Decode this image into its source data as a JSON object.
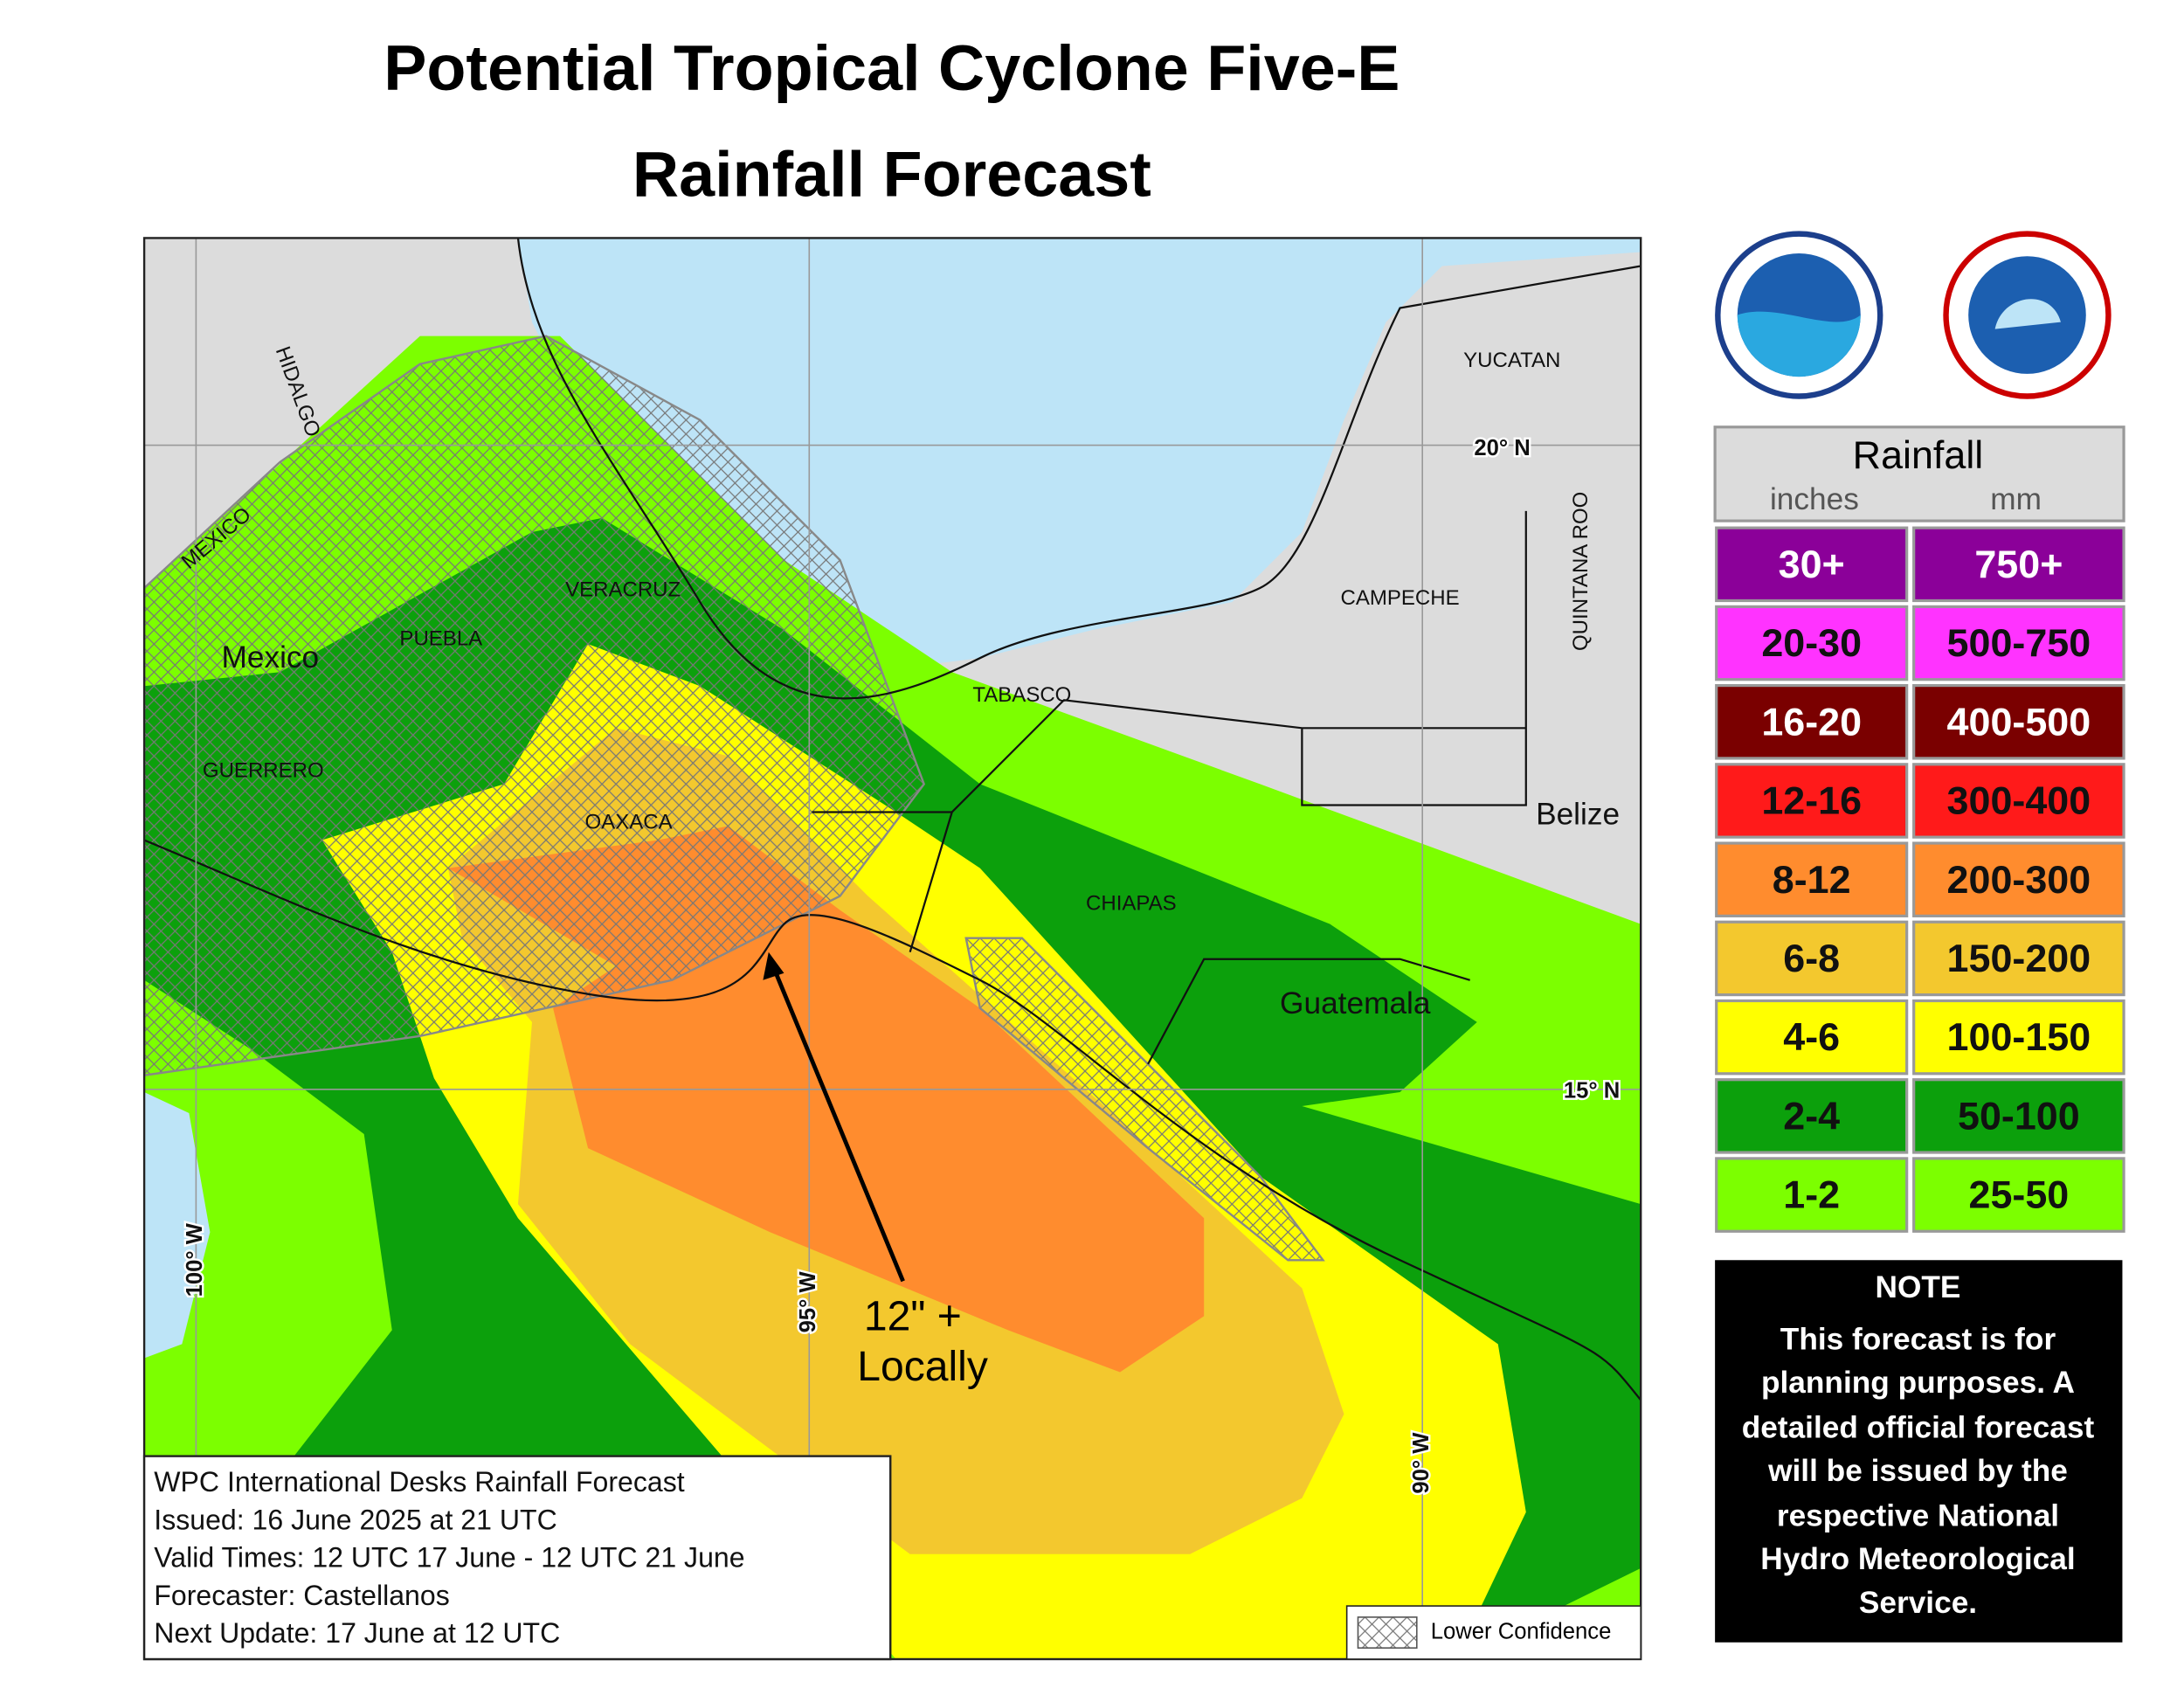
{
  "title": [
    "Potential Tropical Cyclone Five-E",
    "Rainfall Forecast"
  ],
  "map": {
    "labels": {
      "yucatan": "YUCATAN",
      "campeche": "CAMPECHE",
      "quintana_roo": "QUINTANA ROO",
      "belize": "Belize",
      "tabasco": "TABASCO",
      "chiapas": "CHIAPAS",
      "guatemala": "Guatemala",
      "veracruz": "VERACRUZ",
      "puebla": "PUEBLA",
      "mexico_country": "Mexico",
      "guerrero": "GUERRERO",
      "oaxaca": "OAXACA",
      "hidalgo": "HIDALGO",
      "mexico_state": "MEXICO"
    },
    "grid_labels": {
      "lat20": "20° N",
      "lat15": "15° N",
      "lon100": "100° W",
      "lon95": "95° W",
      "lon90": "90° W"
    },
    "annotation": [
      "12\" +",
      "Locally"
    ]
  },
  "legend": {
    "title": "Rainfall",
    "units": [
      "inches",
      "mm"
    ],
    "rows": [
      {
        "inches": "30+",
        "mm": "750+",
        "color": "#8b0099",
        "text_color": "#fff"
      },
      {
        "inches": "20-30",
        "mm": "500-750",
        "color": "#ff33ff",
        "text_color": "#111"
      },
      {
        "inches": "16-20",
        "mm": "400-500",
        "color": "#7a0000",
        "text_color": "#fff"
      },
      {
        "inches": "12-16",
        "mm": "300-400",
        "color": "#ff1a1a",
        "text_color": "#111"
      },
      {
        "inches": "8-12",
        "mm": "200-300",
        "color": "#ff8c2e",
        "text_color": "#111"
      },
      {
        "inches": "6-8",
        "mm": "150-200",
        "color": "#f3c82e",
        "text_color": "#111"
      },
      {
        "inches": "4-6",
        "mm": "100-150",
        "color": "#ffff00",
        "text_color": "#111"
      },
      {
        "inches": "2-4",
        "mm": "50-100",
        "color": "#0ca00c",
        "text_color": "#111"
      },
      {
        "inches": "1-2",
        "mm": "25-50",
        "color": "#7cff00",
        "text_color": "#111"
      }
    ]
  },
  "note": {
    "title": "NOTE",
    "lines": [
      "This forecast is for",
      "planning purposes. A",
      "detailed official forecast",
      "will be issued by the",
      "respective National",
      "Hydro Meteorological",
      "Service."
    ]
  },
  "info": [
    "WPC International Desks Rainfall Forecast",
    "Issued: 16 June 2025 at 21 UTC",
    "Valid Times: 12 UTC 17 June - 12 UTC 21 June",
    "Forecaster: Castellanos",
    "Next Update: 17 June at 12 UTC"
  ],
  "key": "Lower Confidence"
}
